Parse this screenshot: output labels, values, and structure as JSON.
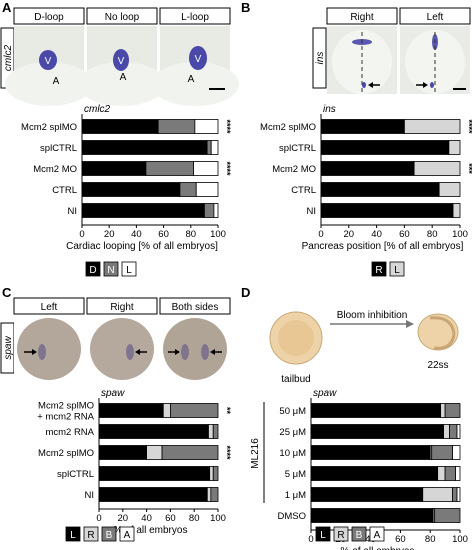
{
  "colors": {
    "black": "#000000",
    "dark_gray": "#7a7a7a",
    "light_gray": "#d6d6d6",
    "white": "#ffffff",
    "embryo": "#e6e9e2",
    "stain": "#4a48a8"
  },
  "panels": {
    "A": {
      "letter": "A",
      "gene_label": "cmlc2",
      "images": [
        "D-loop",
        "No loop",
        "L-loop"
      ],
      "marker_v": "V",
      "marker_a": "A"
    },
    "B": {
      "letter": "B",
      "gene_label": "ins",
      "images": [
        "Right",
        "Left"
      ]
    },
    "C": {
      "letter": "C",
      "gene_label": "spaw",
      "images": [
        "Left",
        "Right",
        "Both sides"
      ]
    },
    "D": {
      "letter": "D",
      "arrow_label": "Bloom inhibition",
      "start_label": "tailbud",
      "end_label": "22ss"
    }
  },
  "chart_data": [
    {
      "id": "A",
      "type": "bar",
      "stacked": true,
      "orientation": "horizontal",
      "chart_title": "cmlc2",
      "categories": [
        "Mcm2 splMO",
        "splCTRL",
        "Mcm2 MO",
        "CTRL",
        "NI"
      ],
      "series": [
        {
          "name": "D",
          "color": "#000000",
          "values": [
            56,
            92,
            47,
            72,
            90
          ]
        },
        {
          "name": "N",
          "color": "#7a7a7a",
          "values": [
            27,
            3,
            35,
            12,
            7
          ]
        },
        {
          "name": "L",
          "color": "#ffffff",
          "values": [
            17,
            5,
            18,
            16,
            3
          ]
        }
      ],
      "significance": [
        "****",
        "",
        "****",
        "",
        ""
      ],
      "xlim": [
        0,
        100
      ],
      "xticks": [
        0,
        20,
        40,
        60,
        80,
        100
      ],
      "xlabel": "Cardiac looping [% of all embryos]"
    },
    {
      "id": "B",
      "type": "bar",
      "stacked": true,
      "orientation": "horizontal",
      "chart_title": "ins",
      "categories": [
        "Mcm2 splMO",
        "splCTRL",
        "Mcm2 MO",
        "CTRL",
        "NI"
      ],
      "series": [
        {
          "name": "R",
          "color": "#000000",
          "values": [
            60,
            92,
            67,
            85,
            95
          ]
        },
        {
          "name": "L",
          "color": "#d6d6d6",
          "values": [
            40,
            8,
            33,
            15,
            5
          ]
        }
      ],
      "significance": [
        "****",
        "",
        "***",
        "",
        ""
      ],
      "xlim": [
        0,
        100
      ],
      "xticks": [
        0,
        20,
        40,
        60,
        80,
        100
      ],
      "xlabel": "Pancreas position [% of all embryos]"
    },
    {
      "id": "C",
      "type": "bar",
      "stacked": true,
      "orientation": "horizontal",
      "chart_title": "spaw",
      "categories": [
        "Mcm2 splMO + mcm2 RNA",
        "mcm2 RNA",
        "Mcm2 splMO",
        "splCTRL",
        "NI"
      ],
      "series": [
        {
          "name": "L",
          "color": "#000000",
          "values": [
            54,
            92,
            40,
            93,
            91
          ]
        },
        {
          "name": "R",
          "color": "#d6d6d6",
          "values": [
            6,
            4,
            13,
            3,
            3
          ]
        },
        {
          "name": "B",
          "color": "#7a7a7a",
          "values": [
            40,
            4,
            47,
            4,
            6
          ]
        },
        {
          "name": "A",
          "color": "#ffffff",
          "values": [
            0,
            0,
            0,
            0,
            0
          ]
        }
      ],
      "significance": [
        "**",
        "",
        "****",
        "",
        ""
      ],
      "xlim": [
        0,
        100
      ],
      "xticks": [
        0,
        20,
        40,
        60,
        80,
        100
      ],
      "xlabel": "% of all embryos"
    },
    {
      "id": "D",
      "type": "bar",
      "stacked": true,
      "orientation": "horizontal",
      "chart_title": "spaw",
      "group_label": "ML216",
      "categories": [
        "50 μM",
        "25 μM",
        "10 μM",
        "5 μM",
        "1 μM",
        "DMSO"
      ],
      "series": [
        {
          "name": "L",
          "color": "#000000",
          "values": [
            87,
            89,
            80,
            85,
            75,
            82
          ]
        },
        {
          "name": "R",
          "color": "#d6d6d6",
          "values": [
            3,
            4,
            1,
            5,
            20,
            1
          ]
        },
        {
          "name": "B",
          "color": "#7a7a7a",
          "values": [
            10,
            5,
            14,
            7,
            3,
            17
          ]
        },
        {
          "name": "A",
          "color": "#ffffff",
          "values": [
            0,
            2,
            5,
            3,
            2,
            0
          ]
        }
      ],
      "significance": [
        "",
        "",
        "",
        "",
        "",
        ""
      ],
      "xlim": [
        0,
        100
      ],
      "xticks": [
        0,
        20,
        40,
        60,
        80,
        100
      ],
      "xlabel": "% of all embryos"
    }
  ]
}
